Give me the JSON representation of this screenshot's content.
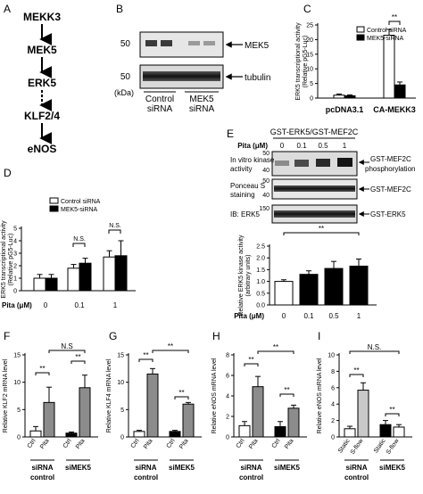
{
  "panel_letters": [
    "A",
    "B",
    "C",
    "D",
    "E",
    "F",
    "G",
    "H",
    "I"
  ],
  "pathway": [
    "MEKK3",
    "MEK5",
    "ERK5",
    "KLF2/4",
    "eNOS"
  ],
  "blot_b": {
    "markers": [
      "50",
      "50"
    ],
    "kda": "(kDa)",
    "labels": [
      "MEK5",
      "tubulin"
    ],
    "lane_groups": [
      [
        "Control",
        "siRNA"
      ],
      [
        "MEK5",
        "siRNA"
      ]
    ]
  },
  "blot_e": {
    "header": "GST-ERK5/GST-MEF2C",
    "pita_label": "Pita (μM)",
    "doses": [
      "0",
      "0.1",
      "0.5",
      "1"
    ],
    "rows": [
      {
        "left": [
          "In vitro kinase",
          "activity"
        ],
        "right": [
          "GST-MEF2C",
          "phosphorylation"
        ],
        "markers": [
          "50",
          "40"
        ]
      },
      {
        "left": [
          "Ponceau S",
          "staining"
        ],
        "right": [
          "GST-MEF2C"
        ],
        "markers": [
          "50",
          "40"
        ]
      },
      {
        "left": [
          "IB: ERK5"
        ],
        "right": [
          "GST-ERK5"
        ],
        "markers": [
          "150"
        ]
      }
    ]
  },
  "colors": {
    "white_bar": "#ffffff",
    "black_bar": "#000000",
    "gray_bar": "#8c8c8c",
    "light_bar": "#c8c8c8"
  },
  "chart_data": [
    {
      "panel": "C",
      "type": "bar",
      "ylabel": [
        "ERK5 transcriptional activity",
        "(Relative pG5-Luc)"
      ],
      "categories": [
        "pcDNA3.1",
        "CA-MEKK3"
      ],
      "legend": [
        "Control siRNA",
        "MEK5-siRNA"
      ],
      "series": [
        {
          "name": "Control siRNA",
          "values": [
            1.0,
            21.5
          ],
          "errors": [
            0.4,
            2.0
          ]
        },
        {
          "name": "MEK5-siRNA",
          "values": [
            0.8,
            4.5
          ],
          "errors": [
            0.3,
            1.0
          ]
        }
      ],
      "ylim": [
        0,
        25
      ],
      "yticks": [
        0,
        5,
        10,
        15,
        20,
        25
      ],
      "annotations": [
        "**"
      ]
    },
    {
      "panel": "D",
      "type": "bar",
      "ylabel": [
        "ERK5 transcriptional activity",
        "(Relative pG5-Luc)"
      ],
      "xlabel": "Pita (μM)",
      "categories": [
        "0",
        "0.1",
        "1"
      ],
      "legend": [
        "Control siRNA",
        "MEK5-siRNA"
      ],
      "series": [
        {
          "name": "Control siRNA",
          "values": [
            1.0,
            1.8,
            2.7
          ],
          "errors": [
            0.3,
            0.3,
            0.5
          ]
        },
        {
          "name": "MEK5-siRNA",
          "values": [
            1.0,
            2.2,
            2.8
          ],
          "errors": [
            0.3,
            0.4,
            1.2
          ]
        }
      ],
      "ylim": [
        0,
        5
      ],
      "yticks": [
        0,
        1,
        2,
        3,
        4,
        5
      ],
      "annotations": [
        "N.S.",
        "N.S."
      ]
    },
    {
      "panel": "E",
      "type": "bar",
      "ylabel": [
        "Relative ERK5 kinase activity",
        "(arbitrary units)"
      ],
      "xlabel": "Pita (μM)",
      "categories": [
        "0",
        "0.1",
        "0.5",
        "1"
      ],
      "values": [
        1.0,
        1.3,
        1.55,
        1.65
      ],
      "errors": [
        0.07,
        0.15,
        0.3,
        0.3
      ],
      "ylim": [
        0,
        2.5
      ],
      "yticks": [
        0.0,
        0.5,
        1.0,
        1.5,
        2.0,
        2.5
      ],
      "annotations": [
        "**"
      ]
    },
    {
      "panel": "F",
      "type": "bar",
      "ylabel": [
        "Relative KLF2 mRNA level"
      ],
      "bar_labels": [
        "Ctrl",
        "Pita",
        "Ctrl",
        "Pita"
      ],
      "groups": [
        [
          "siRNA",
          "control"
        ],
        [
          "siMEK5"
        ]
      ],
      "values": [
        1.1,
        6.3,
        0.7,
        9.0
      ],
      "errors": [
        0.8,
        2.8,
        0.2,
        2.3
      ],
      "ylim": [
        0,
        15
      ],
      "yticks": [
        0,
        5,
        10,
        15
      ],
      "annotations": [
        "**",
        "**",
        "N.S"
      ]
    },
    {
      "panel": "G",
      "type": "bar",
      "ylabel": [
        "Relative KLF4 mRNA level"
      ],
      "bar_labels": [
        "Ctrl",
        "Pita",
        "Ctrl",
        "Pita"
      ],
      "groups": [
        [
          "siRNA",
          "control"
        ],
        [
          "siMEK5"
        ]
      ],
      "values": [
        1.0,
        11.5,
        1.0,
        6.0
      ],
      "errors": [
        0.2,
        1.0,
        0.2,
        0.3
      ],
      "ylim": [
        0,
        15
      ],
      "yticks": [
        0,
        5,
        10,
        15
      ],
      "annotations": [
        "**",
        "**",
        "**"
      ]
    },
    {
      "panel": "H",
      "type": "bar",
      "ylabel": [
        "Relative eNOS mRNA level"
      ],
      "bar_labels": [
        "Ctrl",
        "Pita",
        "Ctrl",
        "Pita"
      ],
      "groups": [
        [
          "siRNA",
          "control"
        ],
        [
          "siMEK5"
        ]
      ],
      "values": [
        1.1,
        4.9,
        1.0,
        2.8
      ],
      "errors": [
        0.4,
        1.0,
        0.5,
        0.3
      ],
      "ylim": [
        0,
        8
      ],
      "yticks": [
        0,
        2,
        4,
        6,
        8
      ],
      "annotations": [
        "**",
        "**",
        "**"
      ]
    },
    {
      "panel": "I",
      "type": "bar",
      "ylabel": [
        "Relative eNOS mRNA level"
      ],
      "bar_labels": [
        "Static",
        "S-flow",
        "Static",
        "S-flow"
      ],
      "groups": [
        [
          "siRNA",
          "control"
        ],
        [
          "siMEK5"
        ]
      ],
      "values": [
        1.0,
        5.7,
        1.5,
        1.2
      ],
      "errors": [
        0.3,
        0.9,
        0.5,
        0.3
      ],
      "ylim": [
        0,
        10
      ],
      "yticks": [
        0,
        2,
        4,
        6,
        8,
        10
      ],
      "annotations": [
        "**",
        "**",
        "N.S."
      ]
    }
  ]
}
